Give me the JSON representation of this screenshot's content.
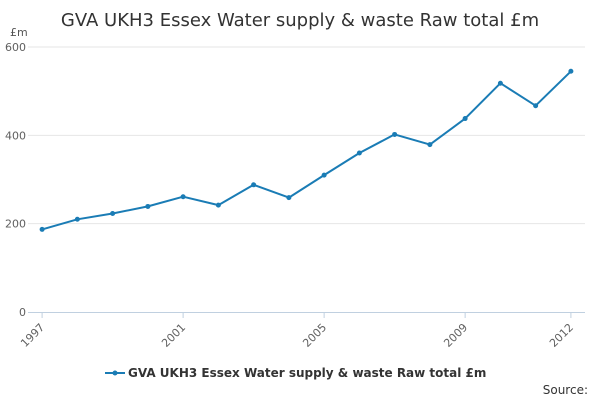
{
  "chart_data": {
    "type": "line",
    "title": "GVA UKH3 Essex Water supply & waste Raw total £m",
    "unit_label": "£m",
    "xlabel": "",
    "ylabel": "",
    "x": [
      1997,
      1998,
      1999,
      2000,
      2001,
      2002,
      2003,
      2004,
      2005,
      2006,
      2007,
      2008,
      2009,
      2010,
      2011,
      2012
    ],
    "x_tick_labels": [
      "1997",
      "2001",
      "2005",
      "2009",
      "2012"
    ],
    "x_tick_values": [
      1997,
      2001,
      2005,
      2009,
      2012
    ],
    "y_tick_labels": [
      "0",
      "200",
      "400",
      "600"
    ],
    "y_tick_values": [
      0,
      200,
      400,
      600
    ],
    "ylim": [
      0,
      600
    ],
    "grid": "horizontal",
    "legend_position": "bottom",
    "series": [
      {
        "name": "GVA UKH3 Essex Water supply & waste Raw total £m",
        "values": [
          187,
          210,
          223,
          239,
          261,
          242,
          288,
          259,
          310,
          360,
          402,
          379,
          438,
          518,
          467,
          545
        ],
        "color": "#1a7cb5"
      }
    ],
    "source_label": "Source:"
  },
  "colors": {
    "series": "#1a7cb5",
    "grid": "#e6e6e6",
    "axis": "#c0d0e0"
  }
}
